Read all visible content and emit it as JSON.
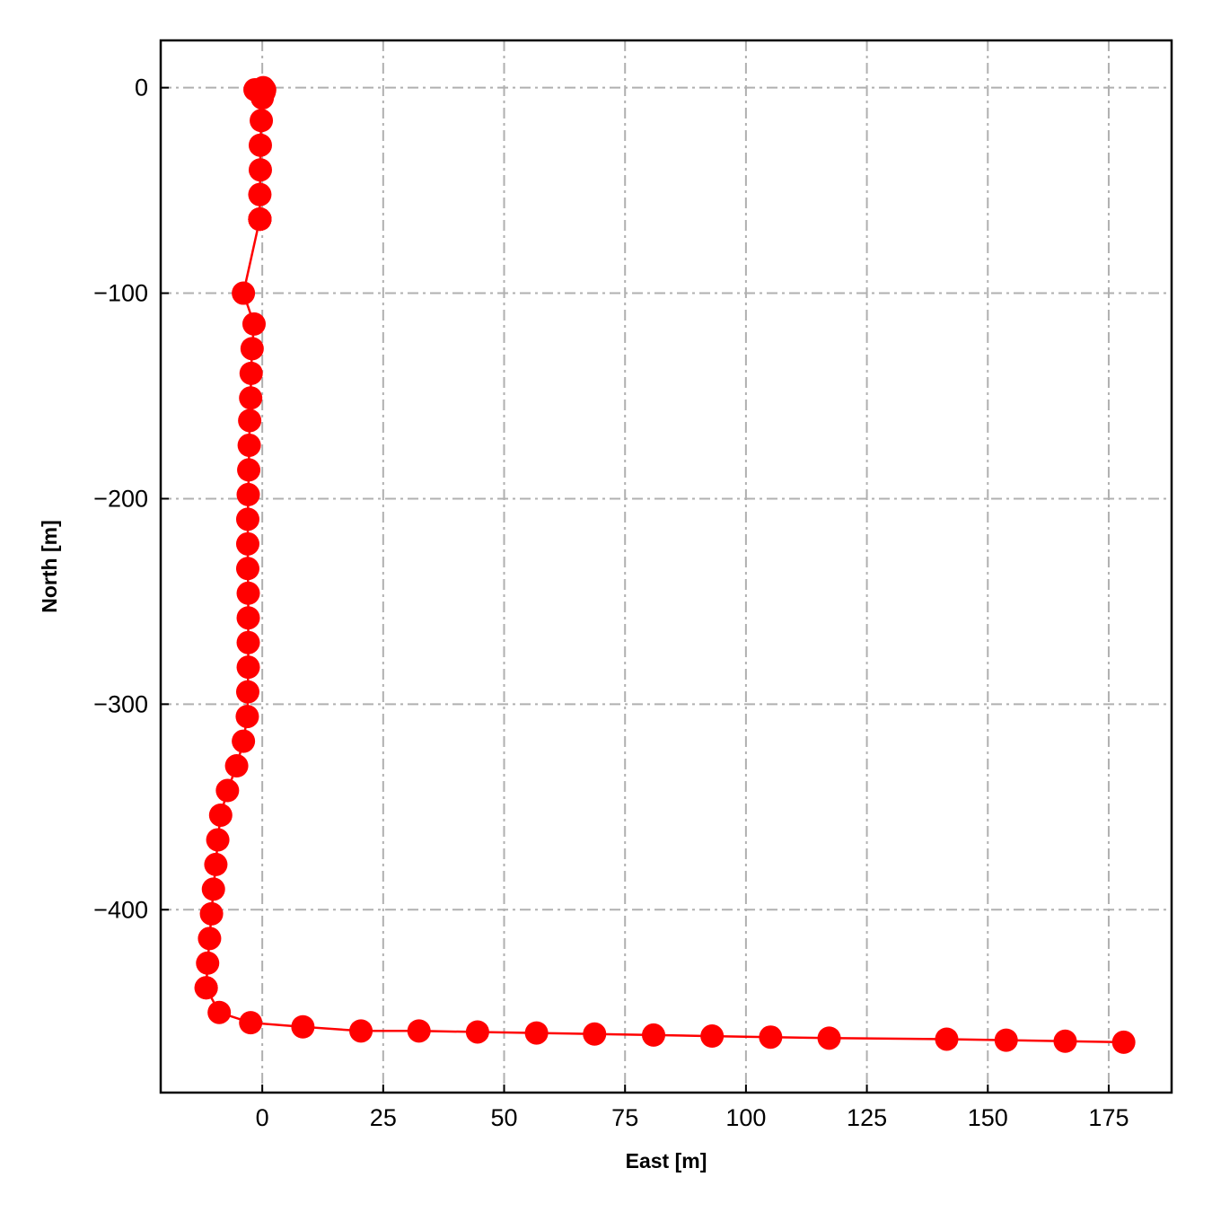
{
  "chart_data": {
    "type": "line",
    "xlabel": "East [m]",
    "ylabel": "North [m]",
    "xlim": [
      -21,
      188
    ],
    "ylim": [
      -489,
      23
    ],
    "grid": true,
    "xticks": [
      0,
      25,
      50,
      75,
      100,
      125,
      150,
      175
    ],
    "yticks": [
      0,
      -100,
      -200,
      -300,
      -400
    ],
    "xtick_labels": [
      "0",
      "25",
      "50",
      "75",
      "100",
      "125",
      "150",
      "175"
    ],
    "ytick_labels": [
      "0",
      "−100",
      "−200",
      "−300",
      "−400"
    ],
    "colors": {
      "series": "#ff0000",
      "grid": "#b0b0b0",
      "frame": "#000000"
    },
    "series": [
      {
        "marker": "circle",
        "x": [
          0.2,
          0.5,
          0.4,
          -0.2,
          -1.5,
          0.2,
          0.0,
          -0.2,
          -0.4,
          -0.4,
          -0.5,
          -0.5,
          -0.5,
          -0.5,
          -0.5,
          -0.5,
          -0.5,
          -0.5,
          -0.5,
          -0.5,
          -0.5,
          -0.5,
          -3.9,
          -1.7,
          -2.1,
          -2.3,
          -2.4,
          -2.6,
          -2.7,
          -2.8,
          -2.9,
          -3.0,
          -3.0,
          -3.0,
          -2.9,
          -2.9,
          -2.9,
          -2.9,
          -3.0,
          -3.1,
          -3.9,
          -5.3,
          -7.2,
          -8.6,
          -9.2,
          -9.6,
          -10.1,
          -10.5,
          -10.9,
          -11.3,
          -11.6,
          -11.6,
          -8.9,
          -2.4,
          8.4,
          20.4,
          32.4,
          44.5,
          56.7,
          68.7,
          80.9,
          93.0,
          105.1,
          117.2,
          141.5,
          153.8,
          166.0,
          178.1
        ],
        "y": [
          0,
          -1,
          -2,
          -1,
          -1,
          -2,
          -5,
          -16,
          -28,
          -40,
          -52,
          -64,
          -64,
          -64,
          -64,
          -64,
          -64,
          -64,
          -64,
          -64,
          -64,
          -64,
          -100,
          -115,
          -127,
          -139,
          -151,
          -162,
          -174,
          -186,
          -198,
          -210,
          -222,
          -234,
          -246,
          -258,
          -270,
          -282,
          -294,
          -306,
          -318,
          -330,
          -342,
          -354,
          -366,
          -378,
          -390,
          -402,
          -414,
          -426,
          -438,
          -438,
          -450,
          -455,
          -457,
          -459,
          -459,
          -459.5,
          -460,
          -460.5,
          -461,
          -461.5,
          -462,
          -462.5,
          -463,
          -463.5,
          -464,
          -464.5
        ]
      }
    ]
  }
}
